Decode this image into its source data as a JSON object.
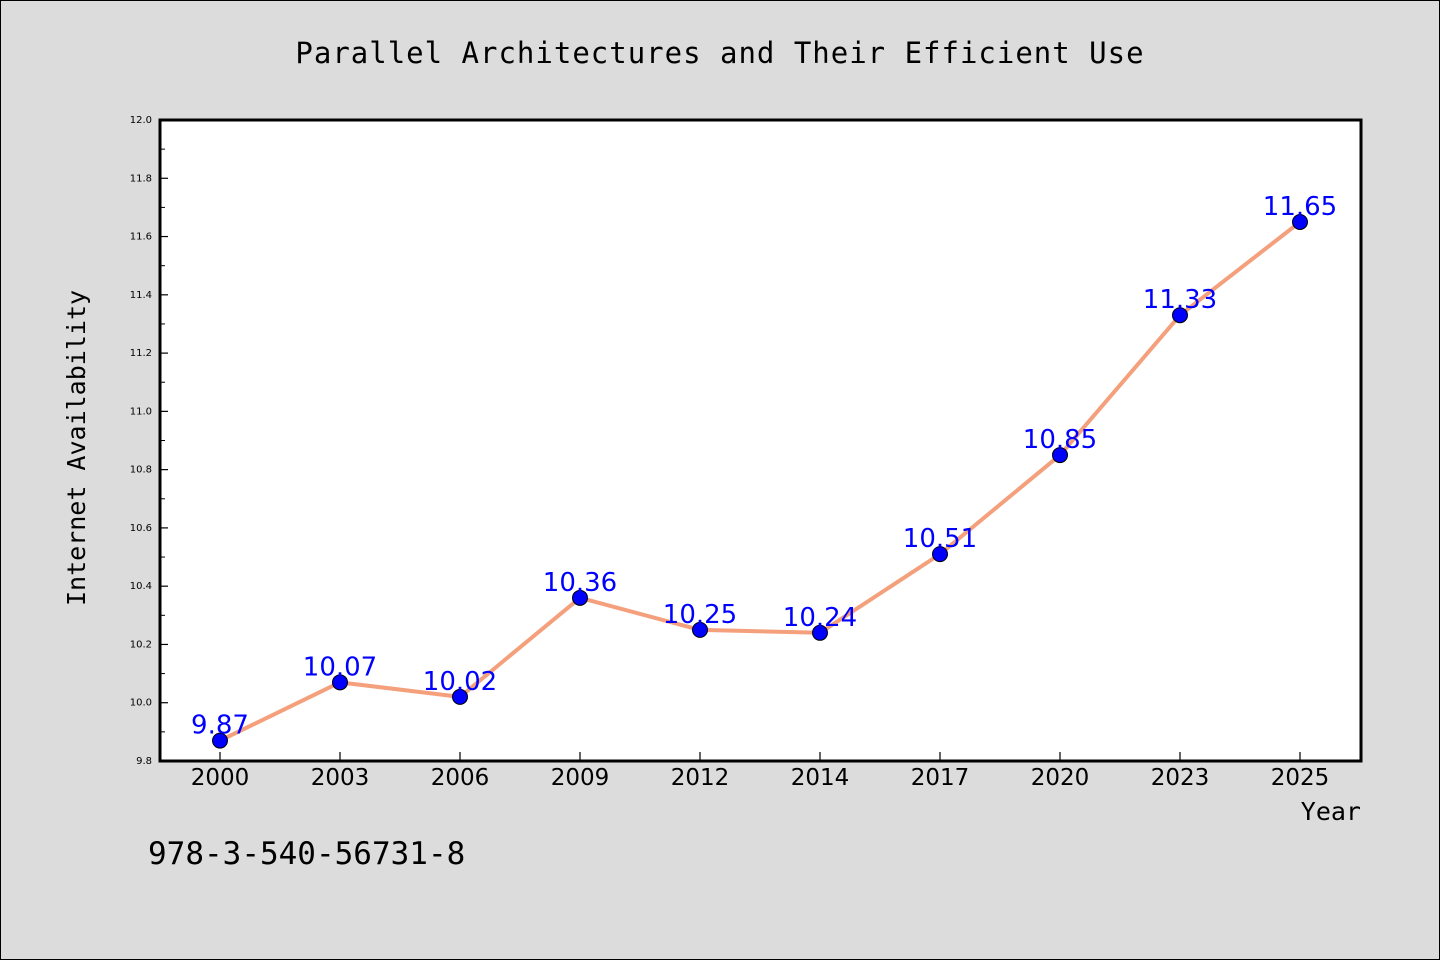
{
  "chart_data": {
    "type": "line",
    "title": "Parallel Architectures and Their Efficient Use",
    "xlabel": "Year",
    "ylabel": "Internet Availability",
    "categories": [
      "2000",
      "2003",
      "2006",
      "2009",
      "2012",
      "2014",
      "2017",
      "2020",
      "2023",
      "2025"
    ],
    "values": [
      9.87,
      10.07,
      10.02,
      10.36,
      10.25,
      10.24,
      10.51,
      10.85,
      11.33,
      11.65
    ],
    "value_labels": [
      "9.87",
      "10.07",
      "10.02",
      "10.36",
      "10.25",
      "10.24",
      "10.51",
      "10.85",
      "11.33",
      "11.65"
    ],
    "ylim": [
      9.8,
      12.0
    ],
    "yticks": [
      "9.8",
      "10.0",
      "10.2",
      "10.4",
      "10.6",
      "10.8",
      "11.0",
      "11.2",
      "11.4",
      "11.6",
      "11.8",
      "12.0"
    ],
    "grid": false,
    "line_color": "#f4a07c",
    "marker_color": "#0000ff",
    "label_color": "#0000ff"
  },
  "footer": {
    "isbn": "978-3-540-56731-8"
  }
}
